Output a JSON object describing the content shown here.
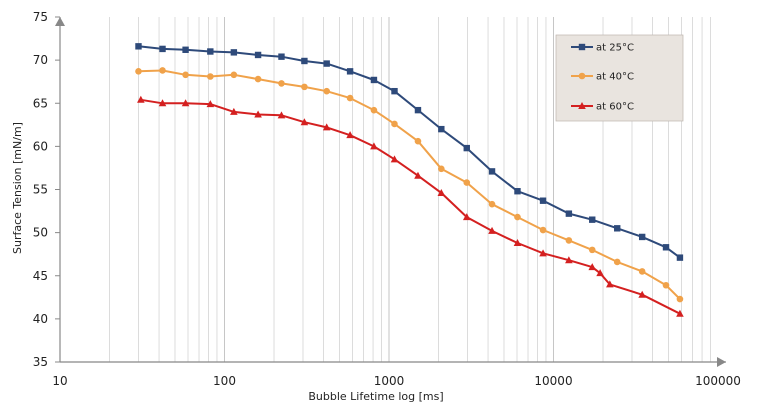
{
  "chart_data": {
    "type": "line",
    "title": "",
    "xlabel": "Bubble Lifetime log [ms]",
    "ylabel": "Surface Tension [mN/m]",
    "x_scale": "log",
    "xlim": [
      10,
      100000
    ],
    "ylim": [
      35,
      75
    ],
    "x_ticks": [
      10,
      100,
      1000,
      10000,
      100000
    ],
    "x_tick_labels": [
      "10",
      "100",
      "1000",
      "10000",
      "100000"
    ],
    "y_ticks": [
      35,
      40,
      45,
      50,
      55,
      60,
      65,
      70,
      75
    ],
    "y_tick_labels": [
      "35",
      "40",
      "45",
      "50",
      "55",
      "60",
      "65",
      "70",
      "75"
    ],
    "grid": {
      "vertical_minor": true,
      "horizontal": false
    },
    "legend_position": "top-right",
    "series": [
      {
        "name": "at 25°C",
        "color": "#2e4a7a",
        "marker": "square",
        "points": [
          [
            30,
            71.6
          ],
          [
            42,
            71.3
          ],
          [
            58,
            71.2
          ],
          [
            82,
            71.0
          ],
          [
            114,
            70.9
          ],
          [
            160,
            70.6
          ],
          [
            222,
            70.4
          ],
          [
            306,
            69.9
          ],
          [
            418,
            69.6
          ],
          [
            580,
            68.7
          ],
          [
            810,
            67.7
          ],
          [
            1080,
            66.4
          ],
          [
            1500,
            64.2
          ],
          [
            2080,
            62.0
          ],
          [
            2970,
            59.8
          ],
          [
            4230,
            57.1
          ],
          [
            6040,
            54.8
          ],
          [
            8640,
            53.7
          ],
          [
            12400,
            52.2
          ],
          [
            17200,
            51.5
          ],
          [
            24400,
            50.5
          ],
          [
            34600,
            49.5
          ],
          [
            48300,
            48.3
          ],
          [
            58700,
            47.1
          ]
        ]
      },
      {
        "name": "at 40°C",
        "color": "#f0a24a",
        "marker": "circle",
        "points": [
          [
            30,
            68.7
          ],
          [
            42,
            68.8
          ],
          [
            58,
            68.3
          ],
          [
            82,
            68.1
          ],
          [
            114,
            68.3
          ],
          [
            160,
            67.8
          ],
          [
            222,
            67.3
          ],
          [
            306,
            66.9
          ],
          [
            418,
            66.4
          ],
          [
            580,
            65.6
          ],
          [
            810,
            64.2
          ],
          [
            1080,
            62.6
          ],
          [
            1500,
            60.6
          ],
          [
            2080,
            57.4
          ],
          [
            2970,
            55.8
          ],
          [
            4230,
            53.3
          ],
          [
            6040,
            51.8
          ],
          [
            8640,
            50.3
          ],
          [
            12400,
            49.1
          ],
          [
            17200,
            48.0
          ],
          [
            24400,
            46.6
          ],
          [
            34600,
            45.5
          ],
          [
            48300,
            43.9
          ],
          [
            58700,
            42.3
          ]
        ]
      },
      {
        "name": "at 60°C",
        "color": "#d42020",
        "marker": "triangle",
        "points": [
          [
            31,
            65.4
          ],
          [
            42,
            65.0
          ],
          [
            58,
            65.0
          ],
          [
            82,
            64.9
          ],
          [
            114,
            64.0
          ],
          [
            160,
            63.7
          ],
          [
            222,
            63.6
          ],
          [
            306,
            62.8
          ],
          [
            418,
            62.2
          ],
          [
            580,
            61.3
          ],
          [
            810,
            60.0
          ],
          [
            1080,
            58.5
          ],
          [
            1500,
            56.6
          ],
          [
            2080,
            54.6
          ],
          [
            2970,
            51.8
          ],
          [
            4230,
            50.2
          ],
          [
            6040,
            48.8
          ],
          [
            8640,
            47.6
          ],
          [
            12400,
            46.8
          ],
          [
            17200,
            46.0
          ],
          [
            19200,
            45.3
          ],
          [
            22000,
            44.0
          ],
          [
            34600,
            42.8
          ],
          [
            58700,
            40.6
          ]
        ]
      }
    ]
  }
}
